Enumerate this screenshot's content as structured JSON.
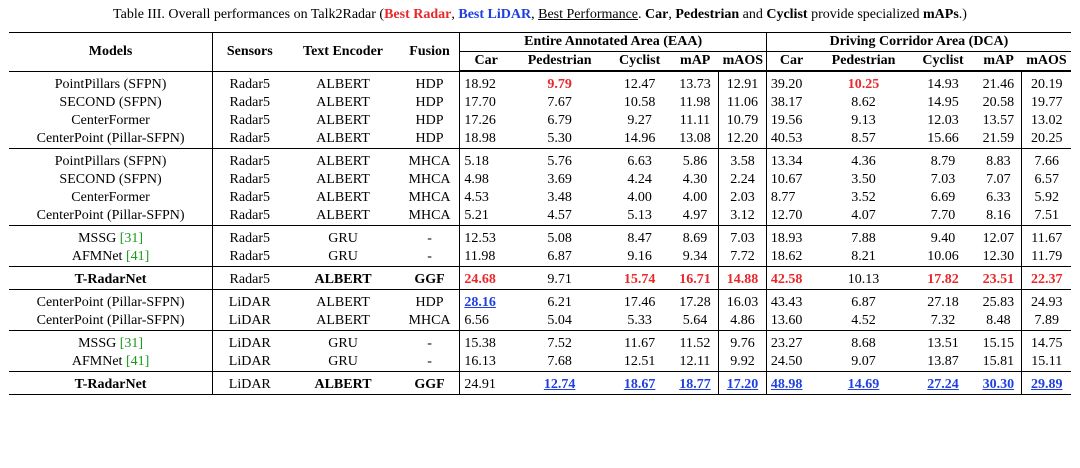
{
  "caption": {
    "prefix": "Table III. Overall performances on Talk2Radar (",
    "best_radar": "Best Radar",
    "sep1": ", ",
    "best_lidar": "Best LiDAR",
    "sep2": ", ",
    "best_perf": "Best Performance",
    "mid": ". ",
    "car": "Car",
    "comma": ", ",
    "pedestrian": "Pedestrian",
    "and": " and ",
    "cyclist": "Cyclist",
    "provide": " provide specialized ",
    "maps": "mAPs",
    "suffix": ".)"
  },
  "headers": {
    "models": "Models",
    "sensors": "Sensors",
    "text_encoder": "Text Encoder",
    "fusion": "Fusion",
    "eaa": "Entire Annotated Area (EAA)",
    "dca": "Driving Corridor Area (DCA)",
    "sub": [
      "Car",
      "Pedestrian",
      "Cyclist",
      "mAP",
      "mAOS",
      "Car",
      "Pedestrian",
      "Cyclist",
      "mAP",
      "mAOS"
    ]
  },
  "rows": [
    {
      "model": "PointPillars (SFPN)",
      "sensor": "Radar5",
      "encoder": "ALBERT",
      "fusion": "HDP",
      "vals": [
        "18.92",
        "9.79",
        "12.47",
        "13.73",
        "12.91",
        "39.20",
        "10.25",
        "14.93",
        "21.46",
        "20.19"
      ]
    },
    {
      "model": "SECOND (SFPN)",
      "sensor": "Radar5",
      "encoder": "ALBERT",
      "fusion": "HDP",
      "vals": [
        "17.70",
        "7.67",
        "10.58",
        "11.98",
        "11.06",
        "38.17",
        "8.62",
        "14.95",
        "20.58",
        "19.77"
      ]
    },
    {
      "model": "CenterFormer",
      "sensor": "Radar5",
      "encoder": "ALBERT",
      "fusion": "HDP",
      "vals": [
        "17.26",
        "6.79",
        "9.27",
        "11.11",
        "10.79",
        "19.56",
        "9.13",
        "12.03",
        "13.57",
        "13.02"
      ]
    },
    {
      "model": "CenterPoint (Pillar-SFPN)",
      "sensor": "Radar5",
      "encoder": "ALBERT",
      "fusion": "HDP",
      "vals": [
        "18.98",
        "5.30",
        "14.96",
        "13.08",
        "12.20",
        "40.53",
        "8.57",
        "15.66",
        "21.59",
        "20.25"
      ]
    },
    {
      "model": "PointPillars (SFPN)",
      "sensor": "Radar5",
      "encoder": "ALBERT",
      "fusion": "MHCA",
      "vals": [
        "5.18",
        "5.76",
        "6.63",
        "5.86",
        "3.58",
        "13.34",
        "4.36",
        "8.79",
        "8.83",
        "7.66"
      ]
    },
    {
      "model": "SECOND (SFPN)",
      "sensor": "Radar5",
      "encoder": "ALBERT",
      "fusion": "MHCA",
      "vals": [
        "4.98",
        "3.69",
        "4.24",
        "4.30",
        "2.24",
        "10.67",
        "3.50",
        "7.03",
        "7.07",
        "6.57"
      ]
    },
    {
      "model": "CenterFormer",
      "sensor": "Radar5",
      "encoder": "ALBERT",
      "fusion": "MHCA",
      "vals": [
        "4.53",
        "3.48",
        "4.00",
        "4.00",
        "2.03",
        "8.77",
        "3.52",
        "6.69",
        "6.33",
        "5.92"
      ]
    },
    {
      "model": "CenterPoint (Pillar-SFPN)",
      "sensor": "Radar5",
      "encoder": "ALBERT",
      "fusion": "MHCA",
      "vals": [
        "5.21",
        "4.57",
        "5.13",
        "4.97",
        "3.12",
        "12.70",
        "4.07",
        "7.70",
        "8.16",
        "7.51"
      ]
    },
    {
      "model": "MSSG ",
      "cite": "[31]",
      "sensor": "Radar5",
      "encoder": "GRU",
      "fusion": "-",
      "vals": [
        "12.53",
        "5.08",
        "8.47",
        "8.69",
        "7.03",
        "18.93",
        "7.88",
        "9.40",
        "12.07",
        "11.67"
      ]
    },
    {
      "model": "AFMNet ",
      "cite": "[41]",
      "sensor": "Radar5",
      "encoder": "GRU",
      "fusion": "-",
      "vals": [
        "11.98",
        "6.87",
        "9.16",
        "9.34",
        "7.72",
        "18.62",
        "8.21",
        "10.06",
        "12.30",
        "11.79"
      ]
    },
    {
      "model": "T-RadarNet",
      "sensor": "Radar5",
      "encoder": "ALBERT",
      "fusion": "GGF",
      "vals": [
        "24.68",
        "9.71",
        "15.74",
        "16.71",
        "14.88",
        "42.58",
        "10.13",
        "17.82",
        "23.51",
        "22.37"
      ]
    },
    {
      "model": "CenterPoint (Pillar-SFPN)",
      "sensor": "LiDAR",
      "encoder": "ALBERT",
      "fusion": "HDP",
      "vals": [
        "28.16",
        "6.21",
        "17.46",
        "17.28",
        "16.03",
        "43.43",
        "6.87",
        "27.18",
        "25.83",
        "24.93"
      ]
    },
    {
      "model": "CenterPoint (Pillar-SFPN)",
      "sensor": "LiDAR",
      "encoder": "ALBERT",
      "fusion": "MHCA",
      "vals": [
        "6.56",
        "5.04",
        "5.33",
        "5.64",
        "4.86",
        "13.60",
        "4.52",
        "7.32",
        "8.48",
        "7.89"
      ]
    },
    {
      "model": "MSSG ",
      "cite": "[31]",
      "sensor": "LiDAR",
      "encoder": "GRU",
      "fusion": "-",
      "vals": [
        "15.38",
        "7.52",
        "11.67",
        "11.52",
        "9.76",
        "23.27",
        "8.68",
        "13.51",
        "15.15",
        "14.75"
      ]
    },
    {
      "model": "AFMNet ",
      "cite": "[41]",
      "sensor": "LiDAR",
      "encoder": "GRU",
      "fusion": "-",
      "vals": [
        "16.13",
        "7.68",
        "12.51",
        "12.11",
        "9.92",
        "24.50",
        "9.07",
        "13.87",
        "15.81",
        "15.11"
      ]
    },
    {
      "model": "T-RadarNet",
      "sensor": "LiDAR",
      "encoder": "ALBERT",
      "fusion": "GGF",
      "vals": [
        "24.91",
        "12.74",
        "18.67",
        "18.77",
        "17.20",
        "48.98",
        "14.69",
        "27.24",
        "30.30",
        "29.89"
      ]
    }
  ]
}
